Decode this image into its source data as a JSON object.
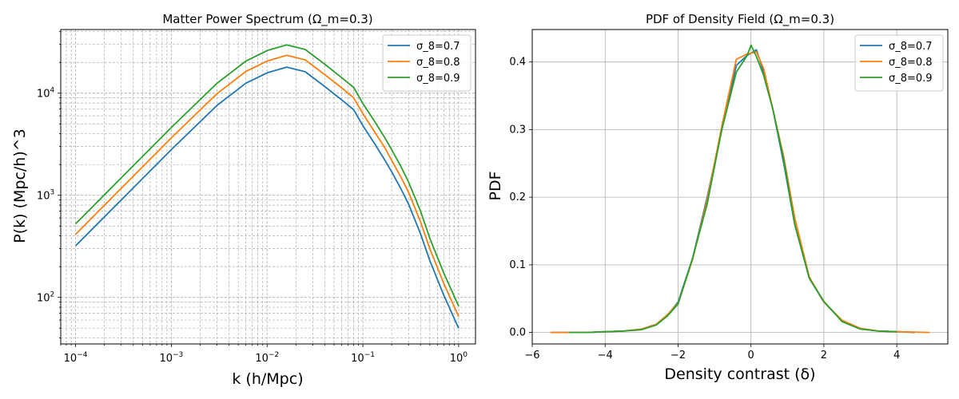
{
  "chart_data": [
    {
      "type": "line",
      "title": "Matter Power Spectrum (Ω_m=0.3)",
      "xlabel": "k (h/Mpc)",
      "ylabel": "P(k) (Mpc/h)^3",
      "xscale": "log",
      "yscale": "log",
      "xlim": [
        7e-05,
        1.5
      ],
      "ylim": [
        35,
        42000
      ],
      "grid": "on (major and minor, dashed)",
      "legend_position": "top-right",
      "x_tick_labels": [
        "10^-4",
        "10^-3",
        "10^-2",
        "10^-1",
        "10^0"
      ],
      "y_tick_labels": [
        "10^2",
        "10^3",
        "10^4"
      ],
      "series": [
        {
          "name": "σ_8=0.7",
          "color": "#1f77b4",
          "x": [
            0.0001,
            0.0003,
            0.001,
            0.003,
            0.006,
            0.01,
            0.016,
            0.025,
            0.04,
            0.06,
            0.08,
            0.1,
            0.13,
            0.17,
            0.2,
            0.25,
            0.3,
            0.4,
            0.5,
            0.7,
            1.0
          ],
          "y": [
            320,
            900,
            2800,
            7600,
            12500,
            15800,
            18000,
            16200,
            11600,
            8600,
            6900,
            4800,
            3300,
            2200,
            1700,
            1150,
            820,
            420,
            230,
            105,
            50
          ]
        },
        {
          "name": "σ_8=0.8",
          "color": "#ff7f0e",
          "x": [
            0.0001,
            0.0003,
            0.001,
            0.003,
            0.006,
            0.01,
            0.016,
            0.025,
            0.04,
            0.06,
            0.08,
            0.1,
            0.13,
            0.17,
            0.2,
            0.25,
            0.3,
            0.4,
            0.5,
            0.7,
            1.0
          ],
          "y": [
            415,
            1170,
            3650,
            9900,
            16300,
            20600,
            23500,
            21200,
            15200,
            11300,
            9000,
            6300,
            4300,
            2900,
            2200,
            1500,
            1070,
            550,
            300,
            137,
            65
          ]
        },
        {
          "name": "σ_8=0.9",
          "color": "#2ca02c",
          "x": [
            0.0001,
            0.0003,
            0.001,
            0.003,
            0.006,
            0.01,
            0.016,
            0.025,
            0.04,
            0.06,
            0.08,
            0.1,
            0.13,
            0.17,
            0.2,
            0.25,
            0.3,
            0.4,
            0.5,
            0.7,
            1.0
          ],
          "y": [
            525,
            1480,
            4620,
            12500,
            20600,
            26100,
            29700,
            26800,
            19200,
            14200,
            11400,
            7900,
            5450,
            3650,
            2800,
            1900,
            1350,
            700,
            380,
            173,
            82
          ]
        }
      ]
    },
    {
      "type": "line",
      "title": "PDF of Density Field (Ω_m=0.3)",
      "xlabel": "Density contrast (δ)",
      "ylabel": "PDF",
      "xlim": [
        -6.0,
        5.4
      ],
      "ylim": [
        -0.017,
        0.448
      ],
      "grid": "on",
      "legend_position": "top-right",
      "x_ticks": [
        -6,
        -4,
        -2,
        0,
        2,
        4
      ],
      "y_ticks": [
        0.0,
        0.1,
        0.2,
        0.3,
        0.4
      ],
      "x_tick_labels": [
        "−6",
        "−4",
        "−2",
        "0",
        "2",
        "4"
      ],
      "y_tick_labels": [
        "0.0",
        "0.1",
        "0.2",
        "0.3",
        "0.4"
      ],
      "series": [
        {
          "name": "σ_8=0.7",
          "color": "#1f77b4",
          "x": [
            -5.5,
            -4.5,
            -4.0,
            -3.5,
            -3.0,
            -2.6,
            -2.3,
            -2.0,
            -1.6,
            -1.2,
            -0.8,
            -0.4,
            -0.1,
            0.0,
            0.15,
            0.35,
            0.6,
            0.9,
            1.2,
            1.6,
            2.0,
            2.5,
            3.0,
            3.5,
            4.0,
            4.5
          ],
          "y": [
            0.0,
            0.0,
            0.001,
            0.002,
            0.005,
            0.012,
            0.025,
            0.045,
            0.11,
            0.2,
            0.3,
            0.395,
            0.41,
            0.413,
            0.418,
            0.385,
            0.33,
            0.25,
            0.16,
            0.08,
            0.045,
            0.017,
            0.006,
            0.002,
            0.001,
            0.0
          ]
        },
        {
          "name": "σ_8=0.8",
          "color": "#ff7f0e",
          "x": [
            -5.5,
            -4.5,
            -4.0,
            -3.5,
            -3.0,
            -2.6,
            -2.3,
            -2.0,
            -1.6,
            -1.2,
            -0.8,
            -0.4,
            -0.1,
            0.0,
            0.15,
            0.35,
            0.6,
            0.9,
            1.2,
            1.6,
            2.0,
            2.5,
            3.0,
            3.5,
            4.0,
            4.9
          ],
          "y": [
            0.0,
            0.0,
            0.001,
            0.002,
            0.005,
            0.012,
            0.026,
            0.043,
            0.108,
            0.196,
            0.305,
            0.404,
            0.412,
            0.413,
            0.415,
            0.39,
            0.33,
            0.26,
            0.17,
            0.082,
            0.045,
            0.018,
            0.006,
            0.002,
            0.001,
            0.0
          ]
        },
        {
          "name": "σ_8=0.9",
          "color": "#2ca02c",
          "x": [
            -5.0,
            -4.5,
            -4.0,
            -3.5,
            -3.0,
            -2.6,
            -2.3,
            -2.0,
            -1.6,
            -1.2,
            -0.8,
            -0.4,
            -0.1,
            0.0,
            0.15,
            0.35,
            0.6,
            0.9,
            1.2,
            1.6,
            2.0,
            2.5,
            3.0,
            3.5,
            4.0
          ],
          "y": [
            0.0,
            0.0,
            0.001,
            0.002,
            0.004,
            0.011,
            0.024,
            0.042,
            0.11,
            0.19,
            0.3,
            0.385,
            0.41,
            0.425,
            0.408,
            0.38,
            0.33,
            0.255,
            0.16,
            0.08,
            0.046,
            0.016,
            0.005,
            0.002,
            0.001
          ]
        }
      ]
    }
  ]
}
